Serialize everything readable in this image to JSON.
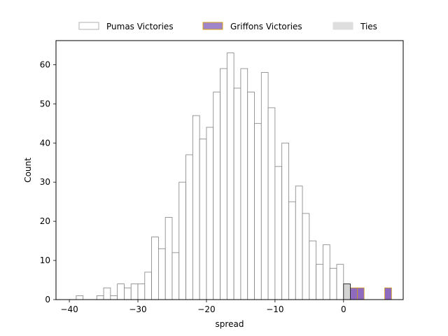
{
  "chart_data": {
    "type": "bar",
    "title": "",
    "xlabel": "spread",
    "ylabel": "Count",
    "xlim": [
      -41.95,
      8.7
    ],
    "ylim": [
      0,
      66.15
    ],
    "xticks": [
      -40,
      -30,
      -20,
      -10,
      0
    ],
    "xtick_labels": [
      "−40",
      "−30",
      "−20",
      "−10",
      "0"
    ],
    "yticks": [
      0,
      10,
      20,
      30,
      40,
      50,
      60
    ],
    "ytick_labels": [
      "0",
      "10",
      "20",
      "30",
      "40",
      "50",
      "60"
    ],
    "bin_width": 1,
    "grid": false,
    "legend_placement": "top-center, above plot",
    "series": [
      {
        "name": "Pumas Victories",
        "fill": "#ffffff",
        "stroke": "#808080",
        "legend_fill": "#ffffff",
        "legend_stroke": "#b0b0b0",
        "bins": [
          [
            -40,
            0
          ],
          [
            -39,
            1
          ],
          [
            -38,
            0
          ],
          [
            -37,
            0
          ],
          [
            -36,
            1
          ],
          [
            -35,
            3
          ],
          [
            -34,
            1
          ],
          [
            -33,
            4
          ],
          [
            -32,
            3
          ],
          [
            -31,
            4
          ],
          [
            -30,
            4
          ],
          [
            -29,
            7
          ],
          [
            -28,
            16
          ],
          [
            -27,
            13
          ],
          [
            -26,
            21
          ],
          [
            -25,
            12
          ],
          [
            -24,
            30
          ],
          [
            -23,
            37
          ],
          [
            -22,
            47
          ],
          [
            -21,
            41
          ],
          [
            -20,
            44
          ],
          [
            -19,
            53
          ],
          [
            -18,
            59
          ],
          [
            -17,
            63
          ],
          [
            -16,
            54
          ],
          [
            -15,
            59
          ],
          [
            -14,
            53
          ],
          [
            -13,
            45
          ],
          [
            -12,
            58
          ],
          [
            -11,
            49
          ],
          [
            -10,
            34
          ],
          [
            -9,
            40
          ],
          [
            -8,
            25
          ],
          [
            -7,
            29
          ],
          [
            -6,
            22
          ],
          [
            -5,
            15
          ],
          [
            -4,
            9
          ],
          [
            -3,
            14
          ],
          [
            -2,
            8
          ],
          [
            -1,
            9
          ]
        ]
      },
      {
        "name": "Griffons Victories",
        "fill": "#8e6bbf",
        "stroke": "#d4a017",
        "legend_fill": "#a085c8",
        "legend_stroke": "#d4a017",
        "bins": [
          [
            1,
            3
          ],
          [
            2,
            3
          ],
          [
            6,
            3
          ]
        ]
      },
      {
        "name": "Ties",
        "fill": "#d3d3d3",
        "stroke": "#000000",
        "legend_fill": "#dedede",
        "legend_stroke": "#dedede",
        "bins": [
          [
            0,
            4
          ]
        ]
      }
    ]
  }
}
